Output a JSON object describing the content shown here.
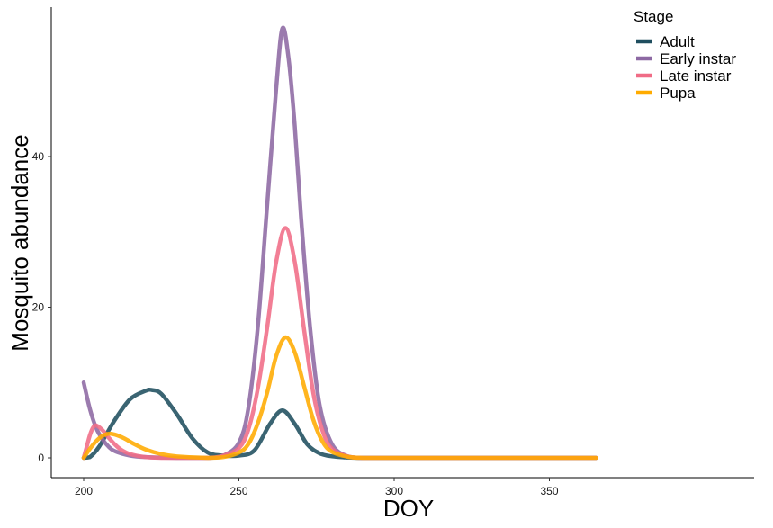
{
  "chart_data": {
    "type": "line",
    "xlabel": "DOY",
    "ylabel": "Mosquito abundance",
    "xlim": [
      200,
      365
    ],
    "ylim": [
      0,
      57
    ],
    "x_ticks": [
      200,
      250,
      300,
      350
    ],
    "y_ticks": [
      0,
      20,
      40
    ],
    "grid": false,
    "legend": {
      "title": "Stage",
      "position": "top-right"
    },
    "series": [
      {
        "name": "Adult",
        "color": "#1f4e5f",
        "x": [
          200,
          202,
          205,
          210,
          215,
          220,
          222,
          225,
          230,
          235,
          240,
          245,
          250,
          255,
          260,
          264,
          268,
          272,
          276,
          280,
          285,
          290,
          300,
          320,
          340,
          365
        ],
        "y": [
          0,
          0.1,
          1.5,
          5.0,
          7.8,
          8.9,
          9.0,
          8.5,
          5.8,
          2.6,
          0.7,
          0.3,
          0.3,
          1.0,
          4.5,
          6.3,
          4.5,
          1.8,
          0.6,
          0.2,
          0.05,
          0,
          0,
          0,
          0,
          0
        ]
      },
      {
        "name": "Early instar",
        "color": "#8d69a3",
        "x": [
          200,
          202,
          204,
          206,
          208,
          210,
          215,
          220,
          230,
          240,
          245,
          250,
          253,
          256,
          259,
          262,
          264,
          266,
          268,
          270,
          273,
          276,
          280,
          285,
          290,
          300,
          320,
          340,
          365
        ],
        "y": [
          10,
          6.5,
          4.0,
          2.5,
          1.5,
          0.9,
          0.3,
          0.1,
          0,
          0,
          0.3,
          2.0,
          6.5,
          17,
          33,
          49,
          57,
          53,
          44,
          32,
          17,
          7,
          1.8,
          0.2,
          0,
          0,
          0,
          0,
          0
        ]
      },
      {
        "name": "Late instar",
        "color": "#f06c86",
        "x": [
          200,
          201,
          202,
          203,
          204,
          206,
          208,
          210,
          212,
          215,
          220,
          225,
          230,
          240,
          245,
          250,
          253,
          256,
          259,
          262,
          265,
          268,
          271,
          274,
          277,
          280,
          285,
          290,
          300,
          320,
          340,
          365
        ],
        "y": [
          0,
          1.5,
          3.0,
          4.0,
          4.3,
          3.7,
          2.7,
          1.8,
          1.1,
          0.5,
          0.1,
          0,
          0,
          0,
          0.3,
          1.3,
          3.7,
          9.0,
          17,
          26,
          30.5,
          26,
          17,
          8.5,
          3.5,
          1.2,
          0.2,
          0,
          0,
          0,
          0,
          0
        ]
      },
      {
        "name": "Pupa",
        "color": "#ffab00",
        "x": [
          200,
          202,
          204,
          206,
          208,
          210,
          213,
          216,
          220,
          225,
          230,
          240,
          245,
          250,
          253,
          256,
          259,
          262,
          265,
          268,
          271,
          274,
          277,
          280,
          285,
          290,
          300,
          320,
          340,
          365
        ],
        "y": [
          0,
          1.2,
          2.2,
          2.9,
          3.2,
          3.1,
          2.6,
          1.9,
          1.1,
          0.5,
          0.2,
          0,
          0.1,
          0.7,
          1.8,
          4.5,
          8.5,
          13.5,
          16,
          14,
          9.5,
          5.0,
          2.1,
          0.8,
          0.15,
          0,
          0,
          0,
          0,
          0
        ]
      }
    ]
  }
}
